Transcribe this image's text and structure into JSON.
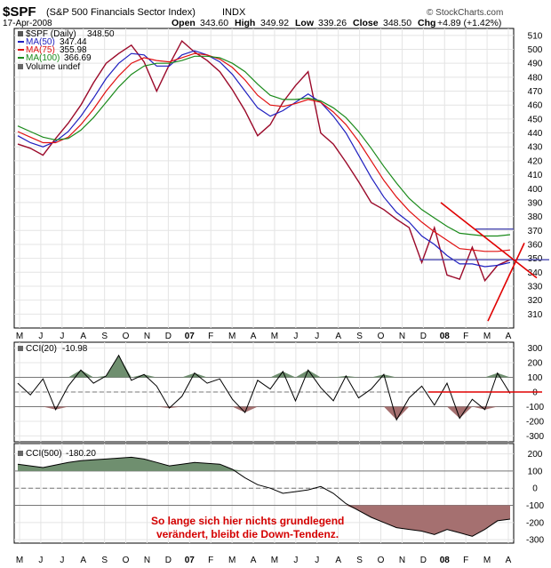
{
  "header": {
    "symbol": "$SPF",
    "description": "(S&P 500 Financials Sector Index)",
    "exchange": "INDX",
    "date": "17-Apr-2008",
    "open_label": "Open",
    "open": "343.60",
    "high_label": "High",
    "high": "349.92",
    "low_label": "Low",
    "low": "339.26",
    "close_label": "Close",
    "close": "348.50",
    "chg_label": "Chg",
    "chg": "+4.89 (+1.42%)",
    "watermark": "© StockCharts.com"
  },
  "legend": {
    "price": {
      "label": "$SPF (Daily)",
      "value": "348.50"
    },
    "ma50": {
      "label": "MA(50)",
      "value": "347.44",
      "color": "#1f1fbf"
    },
    "ma75": {
      "label": "MA(75)",
      "value": "355.98",
      "color": "#e01010"
    },
    "ma100": {
      "label": "MA(100)",
      "value": "366.69",
      "color": "#1a8a1a"
    },
    "volume": {
      "label": "Volume undef"
    }
  },
  "cci20_panel": {
    "label": "CCI(20)",
    "value": "-10.98"
  },
  "cci500_panel": {
    "label": "CCI(500)",
    "value": "-180.20"
  },
  "annotation": {
    "line1": "So lange sich hier nichts grundlegend",
    "line2": "verändert, bleibt die Down-Tendenz.",
    "color": "#d40000"
  },
  "colors": {
    "price_bar": "#9b0a2a",
    "cci_up_fill": "#6f8f6f",
    "cci_down_fill": "#a57070",
    "trend_line": "#e00000",
    "support_line": "#4a4ab0"
  },
  "chart_data": [
    {
      "type": "line",
      "title": "$SPF (S&P 500 Financials Sector Index) INDX",
      "x_tick_labels": [
        "M",
        "J",
        "J",
        "A",
        "S",
        "O",
        "N",
        "D",
        "07",
        "F",
        "M",
        "A",
        "M",
        "J",
        "J",
        "A",
        "S",
        "O",
        "N",
        "D",
        "08",
        "F",
        "M",
        "A"
      ],
      "y_ticks": [
        310,
        320,
        330,
        340,
        350,
        360,
        370,
        380,
        390,
        400,
        410,
        420,
        430,
        440,
        450,
        460,
        470,
        480,
        490,
        500,
        510
      ],
      "ylim": [
        300,
        515
      ],
      "series": [
        {
          "name": "$SPF (Daily)",
          "values": [
            432,
            429,
            424,
            436,
            447,
            460,
            476,
            490,
            497,
            503,
            491,
            470,
            489,
            506,
            498,
            492,
            484,
            471,
            456,
            438,
            446,
            462,
            474,
            484,
            440,
            432,
            419,
            405,
            390,
            385,
            378,
            372,
            347,
            372,
            338,
            335,
            358,
            334,
            345,
            349
          ]
        },
        {
          "name": "MA(50)",
          "values": [
            438,
            433,
            430,
            434,
            441,
            452,
            465,
            479,
            490,
            497,
            496,
            488,
            488,
            496,
            499,
            496,
            491,
            482,
            470,
            458,
            452,
            456,
            462,
            468,
            462,
            452,
            440,
            424,
            408,
            394,
            383,
            376,
            366,
            360,
            352,
            346,
            346,
            344,
            345,
            347
          ]
        },
        {
          "name": "MA(75)",
          "values": [
            441,
            437,
            433,
            433,
            437,
            446,
            457,
            470,
            481,
            490,
            494,
            492,
            491,
            494,
            497,
            496,
            493,
            487,
            478,
            467,
            460,
            459,
            461,
            464,
            462,
            455,
            446,
            434,
            420,
            406,
            394,
            384,
            376,
            369,
            363,
            357,
            356,
            355,
            355,
            356
          ]
        },
        {
          "name": "MA(100)",
          "values": [
            445,
            441,
            437,
            435,
            436,
            442,
            451,
            462,
            473,
            482,
            488,
            490,
            490,
            492,
            495,
            495,
            494,
            490,
            484,
            475,
            467,
            464,
            464,
            465,
            463,
            458,
            451,
            441,
            429,
            416,
            404,
            393,
            385,
            379,
            373,
            368,
            367,
            366,
            366,
            367
          ]
        }
      ],
      "annotations": {
        "horizontal_lines": [
          371,
          349
        ],
        "downtrend_line": [
          [
            496,
            390
          ],
          [
            579,
            336
          ]
        ],
        "uptrend_line": [
          [
            549,
            305
          ],
          [
            578,
            339
          ]
        ]
      }
    },
    {
      "type": "line",
      "title": "CCI(20)",
      "y_ticks": [
        300,
        200,
        100,
        0,
        -100,
        -200,
        -300
      ],
      "ylim": [
        -340,
        340
      ],
      "series": [
        {
          "name": "CCI(20)",
          "values": [
            60,
            -20,
            90,
            -120,
            40,
            150,
            60,
            110,
            250,
            80,
            120,
            40,
            -110,
            -30,
            130,
            60,
            90,
            -50,
            -140,
            80,
            20,
            140,
            -60,
            150,
            30,
            -60,
            110,
            -40,
            20,
            120,
            -190,
            -40,
            40,
            -90,
            60,
            -180,
            -50,
            -120,
            130,
            -10
          ]
        }
      ],
      "annotations": {
        "horizontal_lines": [
          0
        ]
      }
    },
    {
      "type": "line",
      "title": "CCI(500)",
      "y_ticks": [
        200,
        100,
        0,
        -100,
        -200,
        -300
      ],
      "ylim": [
        -320,
        260
      ],
      "series": [
        {
          "name": "CCI(500)",
          "values": [
            140,
            130,
            120,
            135,
            150,
            160,
            165,
            170,
            175,
            180,
            170,
            150,
            130,
            140,
            150,
            145,
            140,
            110,
            60,
            20,
            0,
            -30,
            -20,
            -10,
            10,
            -30,
            -90,
            -130,
            -170,
            -200,
            -230,
            -240,
            -250,
            -270,
            -240,
            -260,
            -280,
            -240,
            -190,
            -180
          ]
        }
      ]
    }
  ]
}
